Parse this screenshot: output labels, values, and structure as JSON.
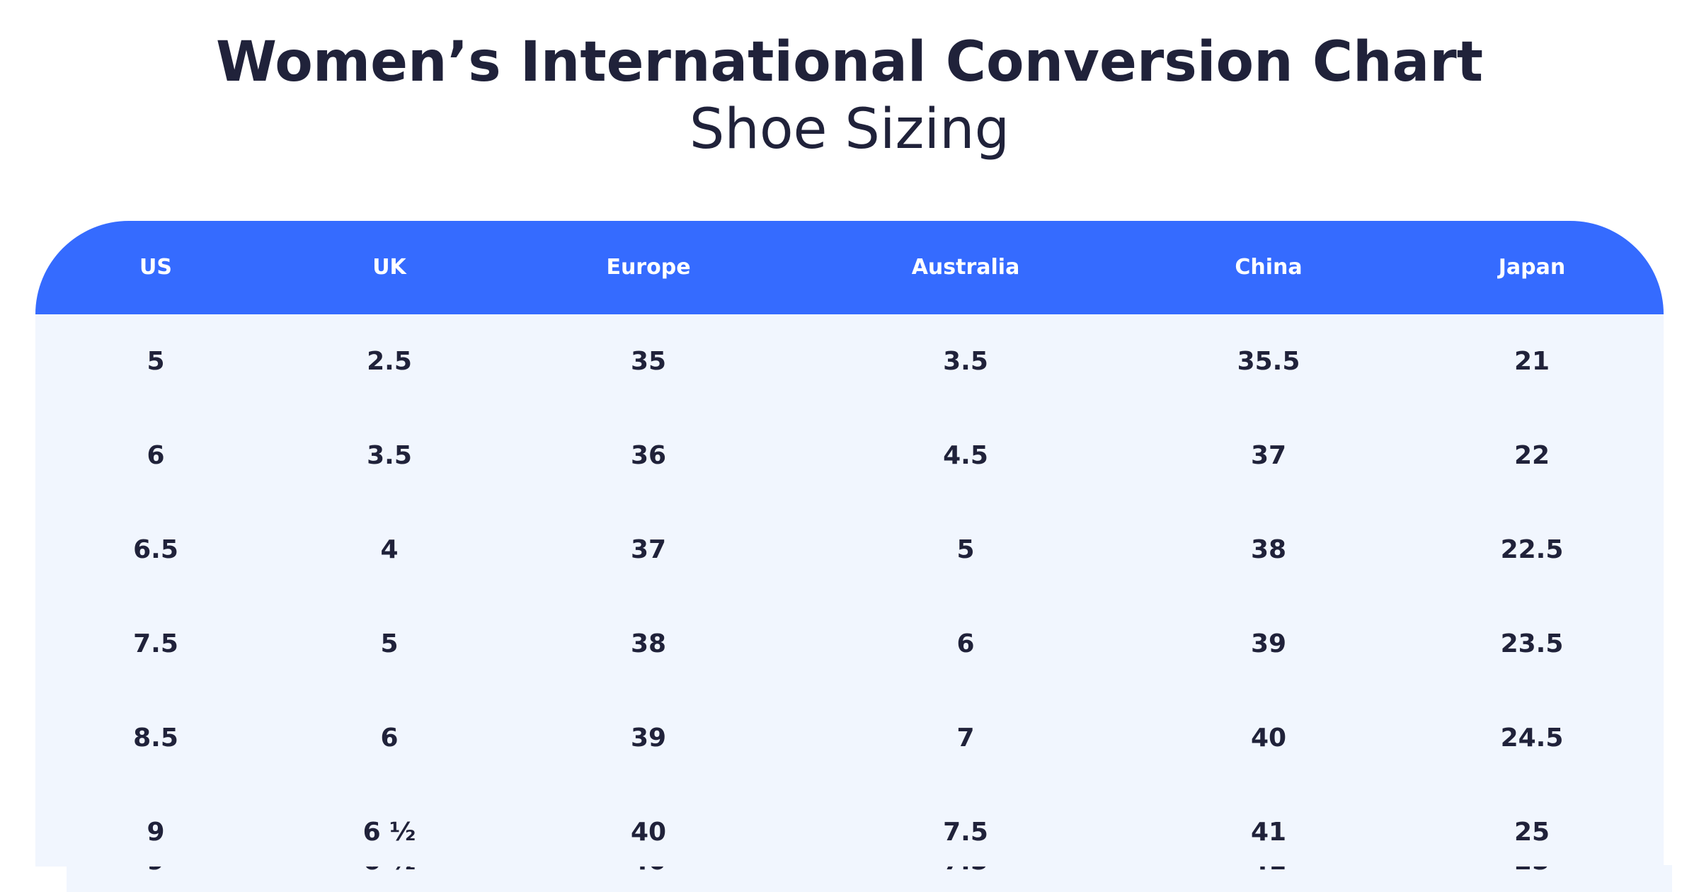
{
  "title": "Women’s International Conversion Chart",
  "subtitle": "Shoe Sizing",
  "colors": {
    "header_bg": "#356bff",
    "body_bg": "#f1f6fe",
    "text": "#20223a",
    "header_text": "#ffffff"
  },
  "table": {
    "columns": [
      "US",
      "UK",
      "Europe",
      "Australia",
      "China",
      "Japan"
    ],
    "rows": [
      [
        "5",
        "2.5",
        "35",
        "3.5",
        "35.5",
        "21"
      ],
      [
        "6",
        "3.5",
        "36",
        "4.5",
        "37",
        "22"
      ],
      [
        "6.5",
        "4",
        "37",
        "5",
        "38",
        "22.5"
      ],
      [
        "7.5",
        "5",
        "38",
        "6",
        "39",
        "23.5"
      ],
      [
        "8.5",
        "6",
        "39",
        "7",
        "40",
        "24.5"
      ],
      [
        "9",
        "6 ½",
        "40",
        "7.5",
        "41",
        "25"
      ]
    ]
  }
}
